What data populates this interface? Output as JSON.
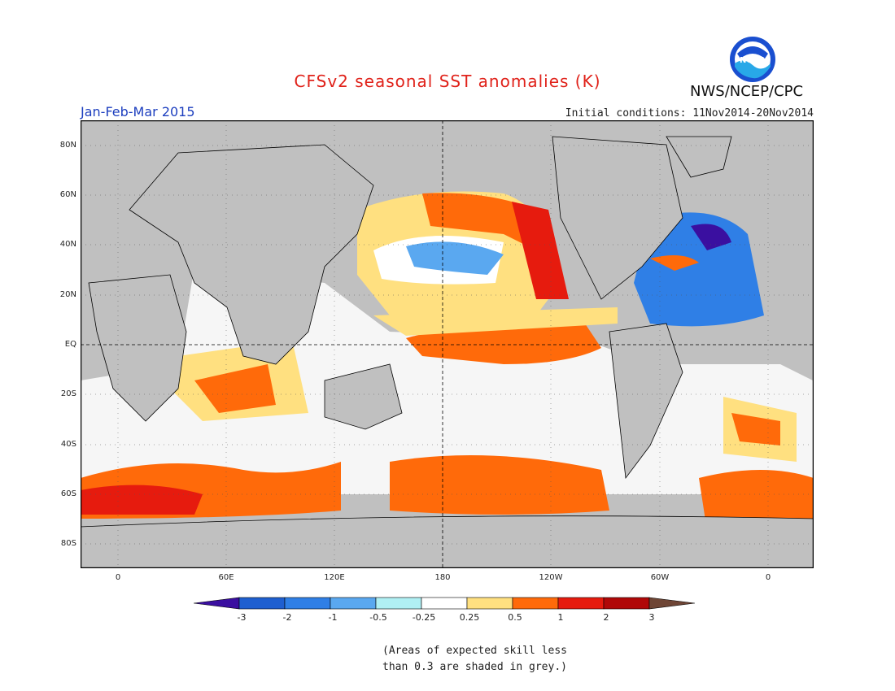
{
  "title": "CFSv2 seasonal SST anomalies (K)",
  "period": "Jan-Feb-Mar 2015",
  "initial_conditions": "Initial conditions: 11Nov2014-20Nov2014",
  "agency": "NWS/NCEP/CPC",
  "logo_text": "NOAA",
  "lat_labels": [
    "80N",
    "60N",
    "40N",
    "20N",
    "EQ",
    "20S",
    "40S",
    "60S",
    "80S"
  ],
  "lon_labels": [
    "0",
    "60E",
    "120E",
    "180",
    "120W",
    "60W",
    "0"
  ],
  "colorbar": {
    "labels": [
      "-3",
      "-2",
      "-1",
      "-0.5",
      "-0.25",
      "0.25",
      "0.5",
      "1",
      "2",
      "3"
    ],
    "colors": [
      "#3a0fa0",
      "#1f5fd0",
      "#2f7fe6",
      "#5aa8f0",
      "#b0f0f4",
      "#ffffff",
      "#ffe080",
      "#ff6a0a",
      "#e61b0e",
      "#b00808",
      "#6e4535"
    ]
  },
  "note": [
    "(Areas of expected skill less",
    "than 0.3 are shaded in grey.)"
  ]
}
